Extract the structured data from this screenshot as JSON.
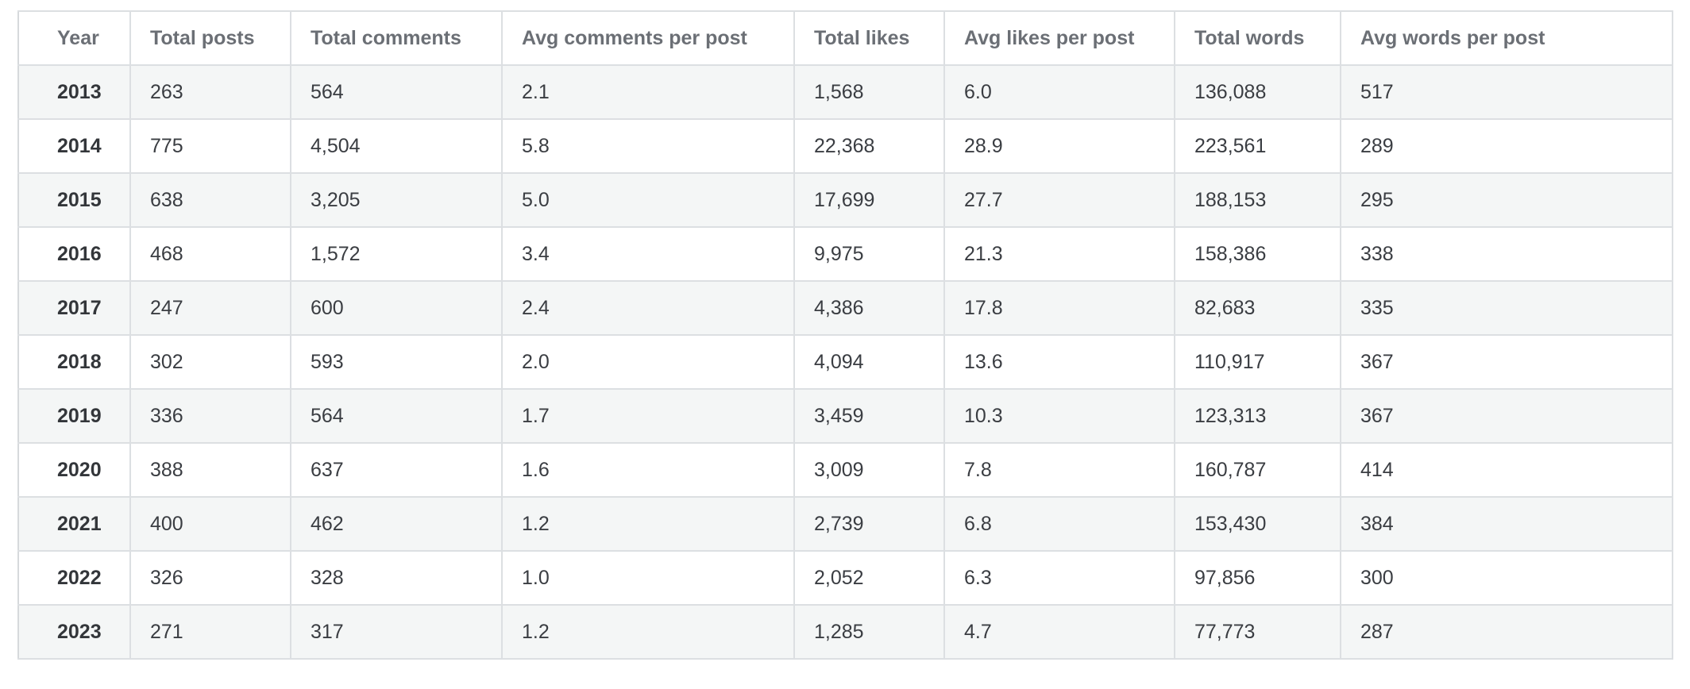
{
  "table": {
    "headers": [
      "Year",
      "Total posts",
      "Total comments",
      "Avg comments per post",
      "Total likes",
      "Avg likes per post",
      "Total words",
      "Avg words per post"
    ],
    "rows": [
      [
        "2013",
        "263",
        "564",
        "2.1",
        "1,568",
        "6.0",
        "136,088",
        "517"
      ],
      [
        "2014",
        "775",
        "4,504",
        "5.8",
        "22,368",
        "28.9",
        "223,561",
        "289"
      ],
      [
        "2015",
        "638",
        "3,205",
        "5.0",
        "17,699",
        "27.7",
        "188,153",
        "295"
      ],
      [
        "2016",
        "468",
        "1,572",
        "3.4",
        "9,975",
        "21.3",
        "158,386",
        "338"
      ],
      [
        "2017",
        "247",
        "600",
        "2.4",
        "4,386",
        "17.8",
        "82,683",
        "335"
      ],
      [
        "2018",
        "302",
        "593",
        "2.0",
        "4,094",
        "13.6",
        "110,917",
        "367"
      ],
      [
        "2019",
        "336",
        "564",
        "1.7",
        "3,459",
        "10.3",
        "123,313",
        "367"
      ],
      [
        "2020",
        "388",
        "637",
        "1.6",
        "3,009",
        "7.8",
        "160,787",
        "414"
      ],
      [
        "2021",
        "400",
        "462",
        "1.2",
        "2,739",
        "6.8",
        "153,430",
        "384"
      ],
      [
        "2022",
        "326",
        "328",
        "1.0",
        "2,052",
        "6.3",
        "97,856",
        "300"
      ],
      [
        "2023",
        "271",
        "317",
        "1.2",
        "1,285",
        "4.7",
        "77,773",
        "287"
      ]
    ]
  }
}
